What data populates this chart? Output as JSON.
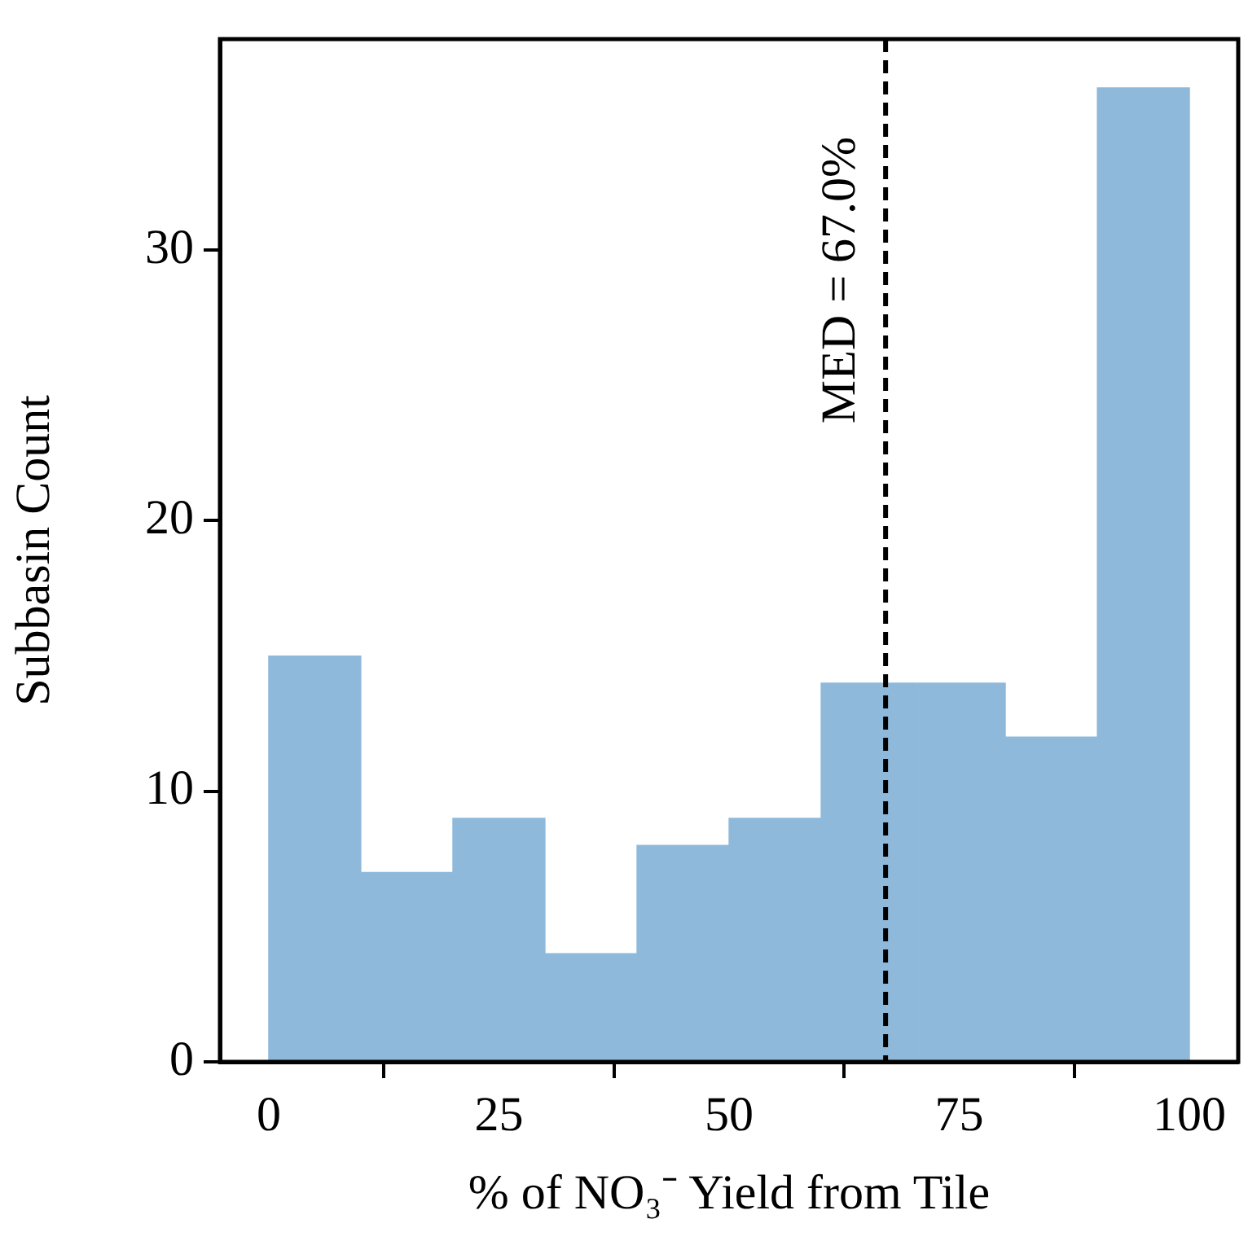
{
  "chart_data": {
    "type": "histogram",
    "xlabel": "% of NO₃⁻ Yield from Tile",
    "ylabel": "Subbasin Count",
    "bins": [
      0,
      10,
      20,
      30,
      40,
      50,
      60,
      70,
      80,
      90,
      100
    ],
    "values": [
      15,
      7,
      9,
      4,
      8,
      9,
      14,
      14,
      12,
      36
    ],
    "color": "#8fb9db",
    "xlim": [
      -5.3,
      105.3
    ],
    "ylim": [
      0,
      37.8
    ],
    "xticks": [
      0,
      25,
      50,
      75,
      100
    ],
    "yticks": [
      0,
      10,
      20,
      30
    ],
    "ref_lines": [
      {
        "axis": "x",
        "value": 67,
        "label": "MED = 67.0%",
        "color": "#000000",
        "line_style": "dashed"
      }
    ],
    "grid": false,
    "legend": false
  }
}
